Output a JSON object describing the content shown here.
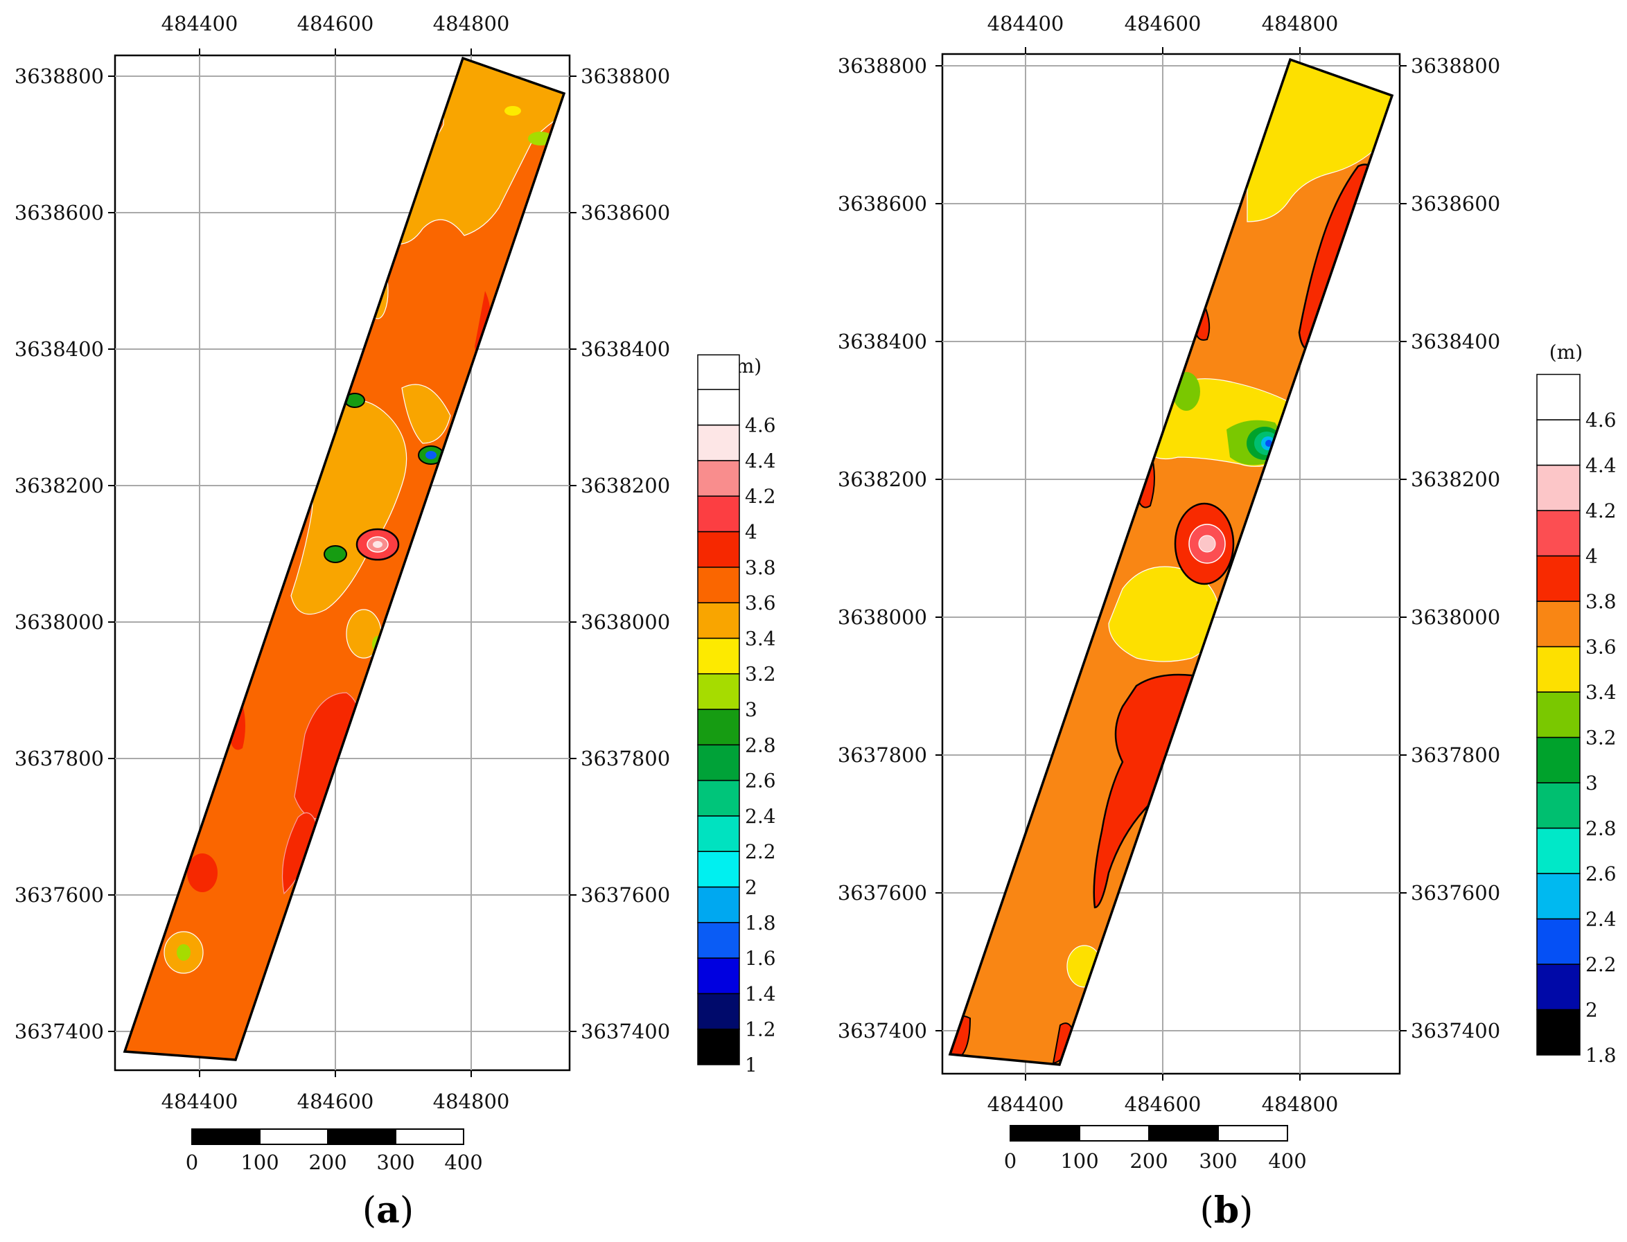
{
  "chart_data": [
    {
      "type": "contour_map",
      "panel_label": "a",
      "legend_unit": "(m)",
      "x_ticks": [
        "484400",
        "484600",
        "484800"
      ],
      "y_ticks": [
        "3638800",
        "3638600",
        "3638400",
        "3638200",
        "3638000",
        "3637800",
        "3637600",
        "3637400"
      ],
      "scale_labels": [
        "0",
        "100",
        "200",
        "300",
        "400"
      ],
      "legend_levels": [
        {
          "label": "1",
          "color": "#000000"
        },
        {
          "label": "1.2",
          "color": "#000a6b"
        },
        {
          "label": "1.4",
          "color": "#0000e0"
        },
        {
          "label": "1.6",
          "color": "#0a5cf5"
        },
        {
          "label": "1.8",
          "color": "#00a8f0"
        },
        {
          "label": "2",
          "color": "#00f0f0"
        },
        {
          "label": "2.2",
          "color": "#00e2c0"
        },
        {
          "label": "2.4",
          "color": "#00c57a"
        },
        {
          "label": "2.6",
          "color": "#00a238"
        },
        {
          "label": "2.8",
          "color": "#169c12"
        },
        {
          "label": "3",
          "color": "#a6dc00"
        },
        {
          "label": "3.2",
          "color": "#fdea00"
        },
        {
          "label": "3.4",
          "color": "#f9a500"
        },
        {
          "label": "3.6",
          "color": "#fa6600"
        },
        {
          "label": "3.8",
          "color": "#f62800"
        },
        {
          "label": "4",
          "color": "#fc3e42"
        },
        {
          "label": "4.2",
          "color": "#f98d8d"
        },
        {
          "label": "4.4",
          "color": "#fde6e6"
        },
        {
          "label": "4.6",
          "color": "#ffffff"
        }
      ]
    },
    {
      "type": "contour_map",
      "panel_label": "b",
      "legend_unit": "(m)",
      "x_ticks": [
        "484400",
        "484600",
        "484800"
      ],
      "y_ticks": [
        "3638800",
        "3638600",
        "3638400",
        "3638200",
        "3638000",
        "3637800",
        "3637600",
        "3637400"
      ],
      "scale_labels": [
        "0",
        "100",
        "200",
        "300",
        "400"
      ],
      "legend_levels": [
        {
          "label": "1.8",
          "color": "#000000"
        },
        {
          "label": "2",
          "color": "#0009a8"
        },
        {
          "label": "2.2",
          "color": "#0550f5"
        },
        {
          "label": "2.4",
          "color": "#00b9f0"
        },
        {
          "label": "2.6",
          "color": "#00e8c8"
        },
        {
          "label": "2.8",
          "color": "#00bf70"
        },
        {
          "label": "3",
          "color": "#00a22c"
        },
        {
          "label": "3.2",
          "color": "#7ac800"
        },
        {
          "label": "3.4",
          "color": "#fde000"
        },
        {
          "label": "3.6",
          "color": "#f98614"
        },
        {
          "label": "3.8",
          "color": "#f82a00"
        },
        {
          "label": "4",
          "color": "#fc4e52"
        },
        {
          "label": "4.2",
          "color": "#fcc6c8"
        },
        {
          "label": "4.4",
          "color": "#ffffff"
        },
        {
          "label": "4.6",
          "color": "#ffffff"
        }
      ]
    }
  ]
}
